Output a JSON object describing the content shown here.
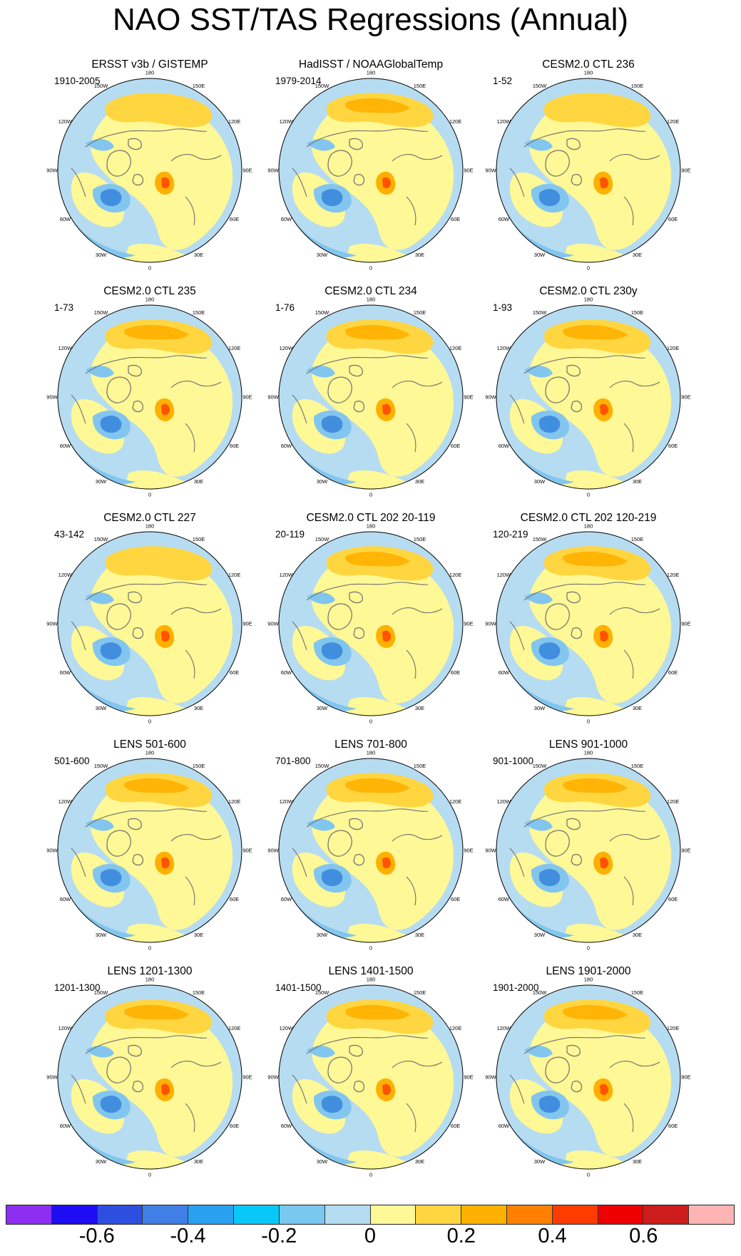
{
  "title": "NAO SST/TAS Regressions (Annual)",
  "longitude_labels": {
    "lon_180": "180",
    "lon_150E": "150E",
    "lon_120E": "120E",
    "lon_90E": "90E",
    "lon_60E": "60E",
    "lon_30E": "30E",
    "lon_0": "0",
    "lon_30W": "30W",
    "lon_60W": "60W",
    "lon_90W": "90W",
    "lon_120W": "120W",
    "lon_150W": "150W"
  },
  "colors": {
    "ocean_neg_weak": "#b6dcf2",
    "ocean_neg_mid": "#82c6ef",
    "cold_strong": "#2c7bd8",
    "coast": "#6f6f6f"
  },
  "panels": [
    {
      "title": "ERSST v3b / GISTEMP",
      "period": "1910-2005"
    },
    {
      "title": "HadISST / NOAAGlobalTemp",
      "period": "1979-2014"
    },
    {
      "title": "CESM2.0 CTL 236",
      "period": "1-52"
    },
    {
      "title": "CESM2.0 CTL 235",
      "period": "1-73"
    },
    {
      "title": "CESM2.0 CTL 234",
      "period": "1-76"
    },
    {
      "title": "CESM2.0 CTL 230y",
      "period": "1-93"
    },
    {
      "title": "CESM2.0 CTL 227",
      "period": "43-142"
    },
    {
      "title": "CESM2.0 CTL 202 20-119",
      "period": "20-119"
    },
    {
      "title": "CESM2.0 CTL 202 120-219",
      "period": "120-219"
    },
    {
      "title": "LENS 501-600",
      "period": "501-600"
    },
    {
      "title": "LENS 701-800",
      "period": "701-800"
    },
    {
      "title": "LENS 901-1000",
      "period": "901-1000"
    },
    {
      "title": "LENS 1201-1300",
      "period": "1201-1300"
    },
    {
      "title": "LENS 1401-1500",
      "period": "1401-1500"
    },
    {
      "title": "LENS 1901-2000",
      "period": "1901-2000"
    }
  ],
  "colorbar": {
    "colors": [
      "#8d2ff0",
      "#1e0cf5",
      "#2d4fe0",
      "#3f7fe6",
      "#2aa0f0",
      "#08c8f8",
      "#78c8f0",
      "#b4dcf0",
      "#fff896",
      "#ffd640",
      "#ffb000",
      "#ff8000",
      "#ff3c00",
      "#ee0000",
      "#cc1c1c",
      "#ffb4b4"
    ],
    "labels": [
      "-0.6",
      "-0.4",
      "-0.2",
      "0",
      "0.2",
      "0.4",
      "0.6"
    ]
  }
}
